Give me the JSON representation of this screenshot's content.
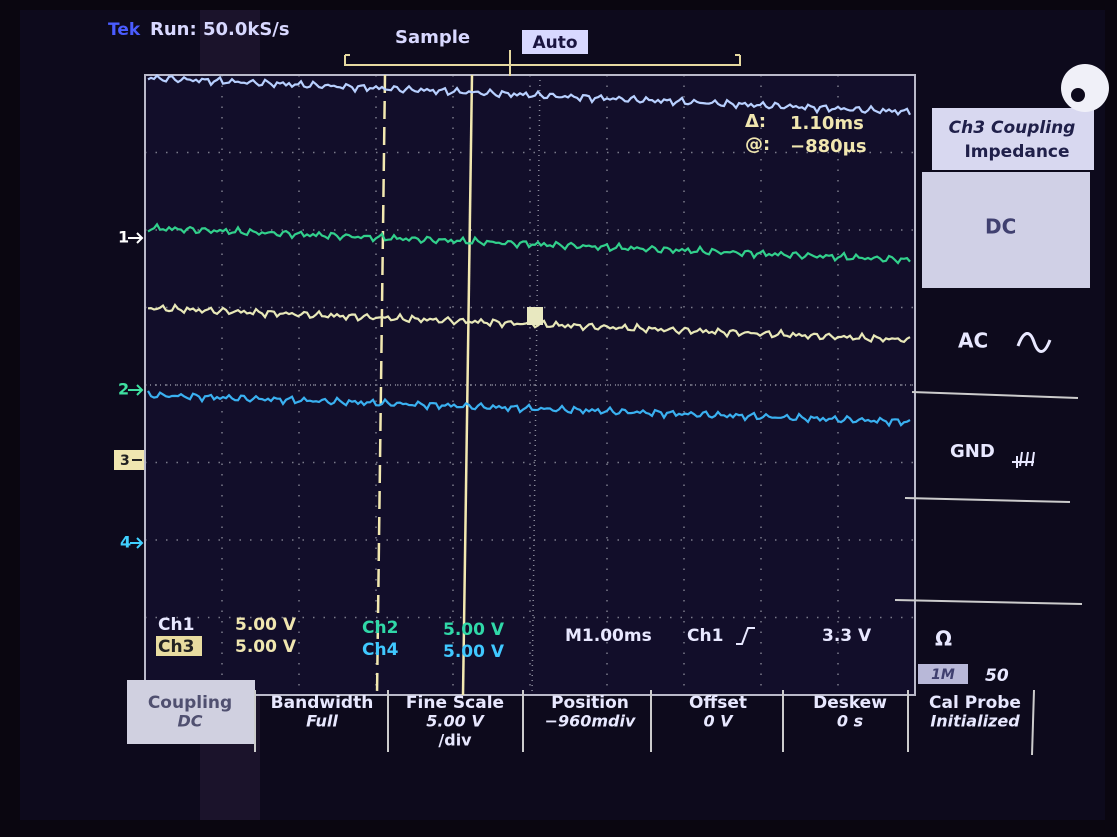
{
  "header": {
    "brand": "Tek",
    "status": "Run: 50.0kS/s",
    "acquisition": "Sample",
    "trigger_mode": "Auto"
  },
  "cursor_readout": {
    "delta_symbol": "Δ:",
    "delta": "1.10ms",
    "at_symbol": "@:",
    "position": "−880µs"
  },
  "channel_markers": [
    "1",
    "2",
    "3",
    "4"
  ],
  "side_menu": {
    "title": [
      "Ch3 Coupling",
      "Impedance"
    ],
    "options": [
      "DC",
      "AC",
      "GND"
    ],
    "impedance_symbol": "Ω",
    "impedance_options": [
      "1M",
      "50"
    ]
  },
  "readout": {
    "channels": [
      {
        "name": "Ch1",
        "scale": "5.00 V"
      },
      {
        "name": "Ch3",
        "scale": "5.00 V"
      },
      {
        "name": "Ch2",
        "scale": "5.00 V"
      },
      {
        "name": "Ch4",
        "scale": "5.00 V"
      }
    ],
    "timebase": "M1.00ms",
    "trigger_source": "Ch1",
    "trigger_level": "3.3 V"
  },
  "bottom_menu": [
    {
      "label": "Coupling",
      "value": "DC"
    },
    {
      "label": "Bandwidth",
      "value": "Full"
    },
    {
      "label": "Fine Scale",
      "value": "5.00 V",
      "unit": "/div"
    },
    {
      "label": "Position",
      "value": "−960mdiv"
    },
    {
      "label": "Offset",
      "value": "0 V"
    },
    {
      "label": "Deskew",
      "value": "0 s"
    },
    {
      "label": "Cal Probe",
      "value": "Initialized"
    }
  ]
}
